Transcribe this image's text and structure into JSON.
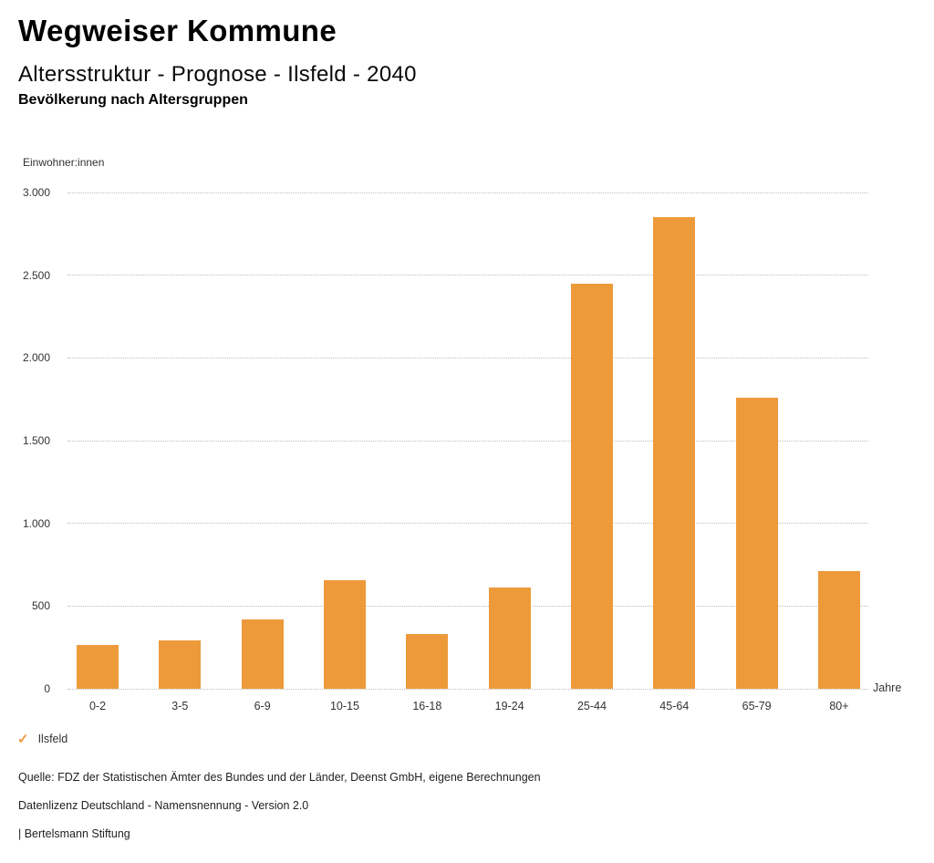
{
  "page": {
    "title": "Wegweiser Kommune",
    "subtitle": "Altersstruktur - Prognose - Ilsfeld - 2040"
  },
  "chart_data": {
    "type": "bar",
    "title": "Bevölkerung nach Altersgruppen",
    "categories": [
      "0-2",
      "3-5",
      "6-9",
      "10-15",
      "16-18",
      "19-24",
      "25-44",
      "45-64",
      "65-79",
      "80+"
    ],
    "series": [
      {
        "name": "Ilsfeld",
        "values": [
          265,
          295,
          420,
          655,
          330,
          610,
          2450,
          2850,
          1760,
          710
        ]
      }
    ],
    "xlabel": "Jahre",
    "ylabel": "Einwohner:innen",
    "ylim": [
      0,
      3000
    ],
    "ytick_step": 500,
    "ytick_labels": [
      "0",
      "500",
      "1.000",
      "1.500",
      "2.000",
      "2.500",
      "3.000"
    ],
    "grid": "horizontal-dotted",
    "legend_position": "bottom-left",
    "bar_color": "#ED9A3B",
    "gridline_color": "#bdbdbd"
  },
  "legend": {
    "check_icon": "✓",
    "check_color": "#ED9A3B",
    "label": "Ilsfeld"
  },
  "footer": {
    "source": "Quelle: FDZ der Statistischen Ämter des Bundes und der Länder, Deenst GmbH, eigene Berechnungen",
    "license": "Datenlizenz Deutschland - Namensnennung - Version 2.0",
    "attribution": "| Bertelsmann Stiftung"
  }
}
